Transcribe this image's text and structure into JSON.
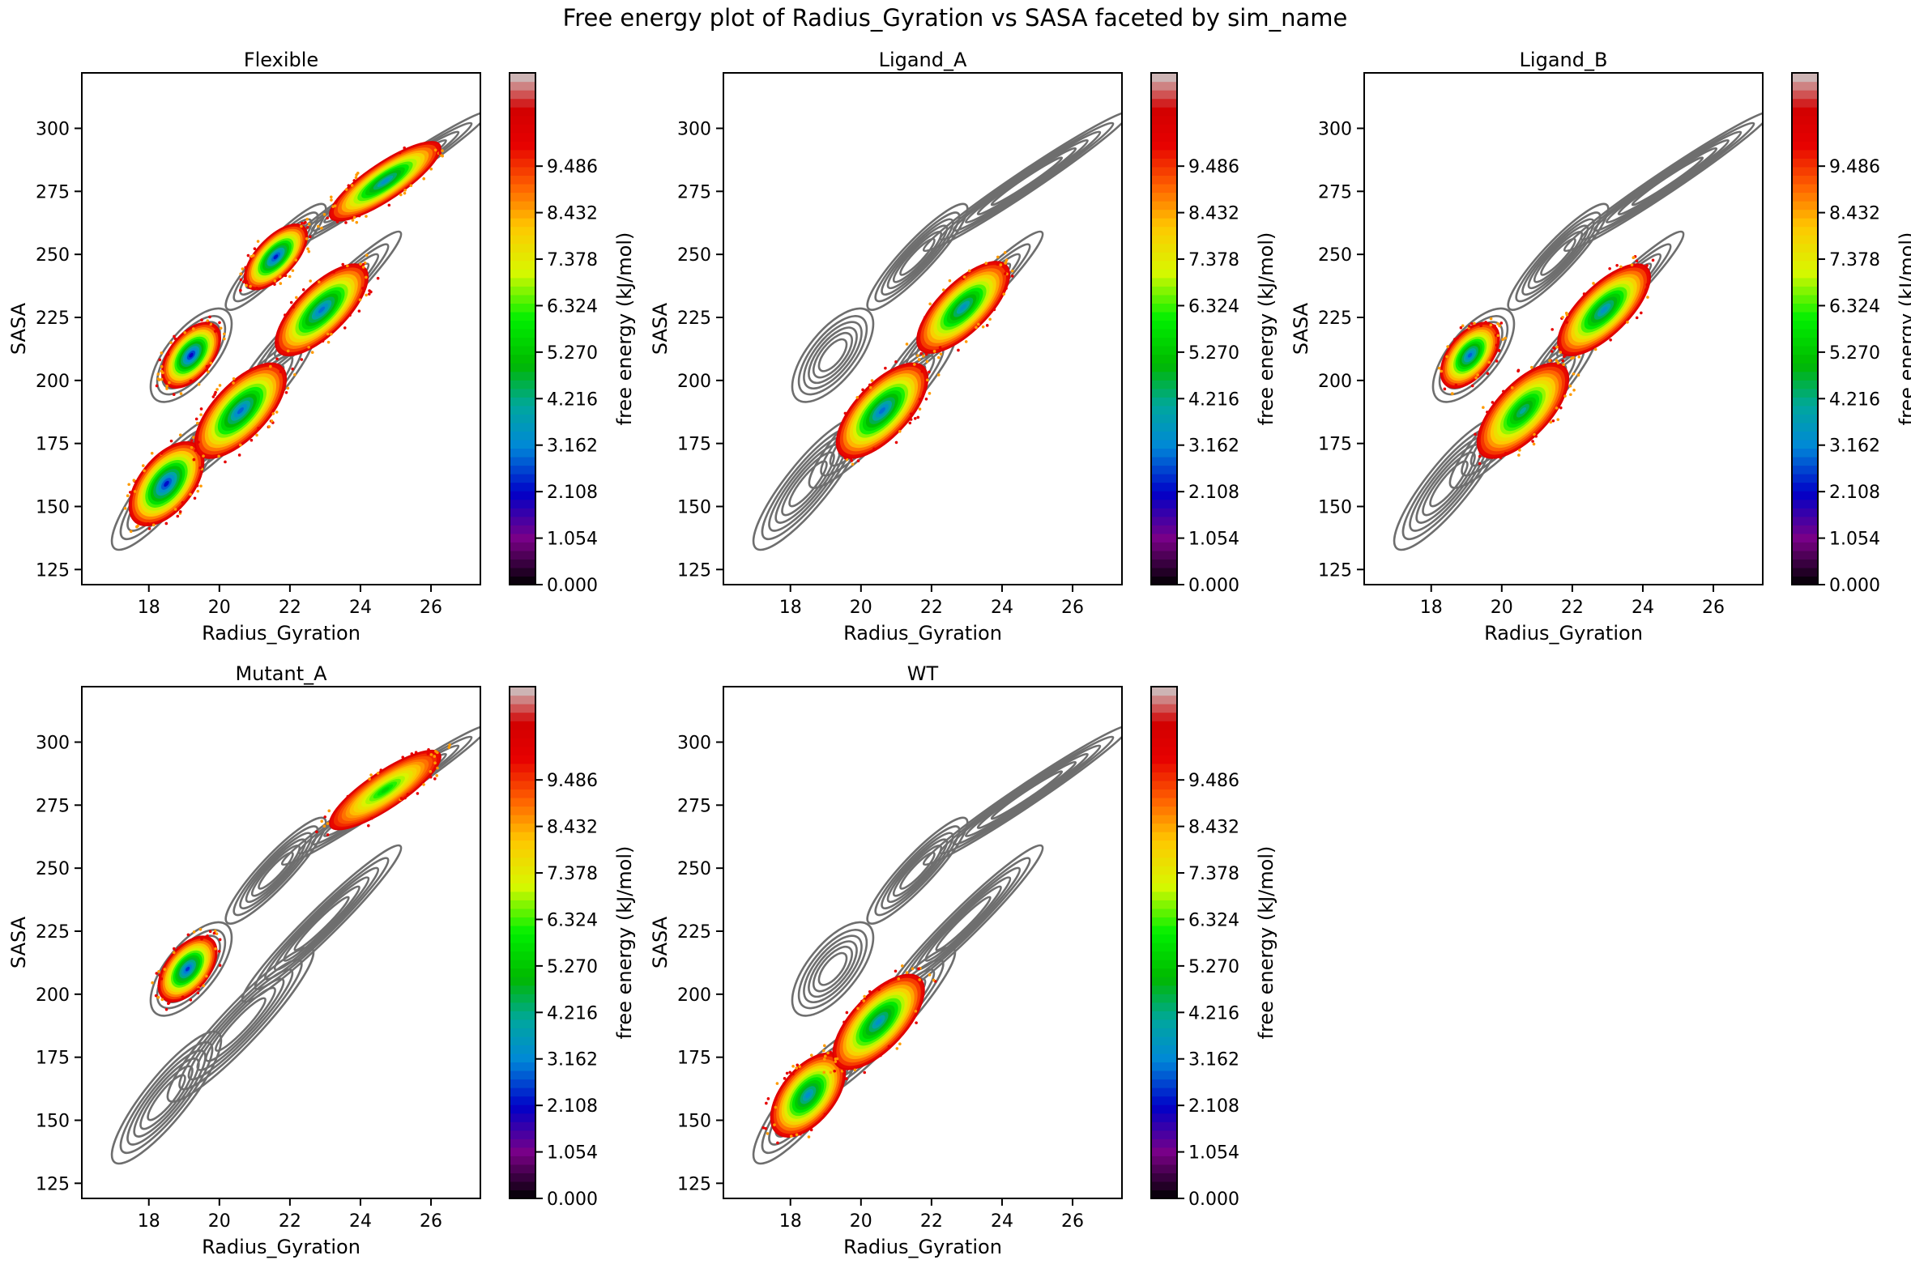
{
  "figure": {
    "suptitle": "Free energy plot of Radius_Gyration vs SASA faceted by sim_name"
  },
  "colors": {
    "reference_contour": "#6e6e6e",
    "colormap": [
      "#000000",
      "#7a0087",
      "#0000c8",
      "#0088d8",
      "#00a79d",
      "#00b800",
      "#00f000",
      "#d7f800",
      "#ffc800",
      "#ff6000",
      "#e60000",
      "#cccccc"
    ]
  },
  "chart_data": [
    {
      "type": "contour",
      "title": "Flexible",
      "xlabel": "Radius_Gyration",
      "ylabel": "SASA",
      "xlim": [
        16.1,
        27.4
      ],
      "ylim": [
        119,
        322
      ],
      "xticks": [
        "18",
        "20",
        "22",
        "24",
        "26"
      ],
      "yticks": [
        "125",
        "150",
        "175",
        "200",
        "225",
        "250",
        "275",
        "300"
      ],
      "colorbar_label": "free energy (kJ/mol)",
      "colorbar_range": [
        0,
        11.6
      ],
      "colorbar_ticks": [
        "0.000",
        "1.054",
        "2.108",
        "3.162",
        "4.216",
        "5.270",
        "6.324",
        "7.378",
        "8.432",
        "9.486"
      ],
      "basins": [
        {
          "x": 18.5,
          "y": 159,
          "min_energy": 1.6
        },
        {
          "x": 19.2,
          "y": 210,
          "min_energy": 1.4
        },
        {
          "x": 20.6,
          "y": 188,
          "min_energy": 2.3
        },
        {
          "x": 21.6,
          "y": 249,
          "min_energy": 1.7
        },
        {
          "x": 22.9,
          "y": 228,
          "min_energy": 2.4
        },
        {
          "x": 24.7,
          "y": 279,
          "min_energy": 2.9
        }
      ]
    },
    {
      "type": "contour",
      "title": "Ligand_A",
      "xlabel": "Radius_Gyration",
      "ylabel": "SASA",
      "xlim": [
        16.1,
        27.4
      ],
      "ylim": [
        119,
        322
      ],
      "xticks": [
        "18",
        "20",
        "22",
        "24",
        "26"
      ],
      "yticks": [
        "125",
        "150",
        "175",
        "200",
        "225",
        "250",
        "275",
        "300"
      ],
      "colorbar_label": "free energy (kJ/mol)",
      "colorbar_range": [
        0,
        11.6
      ],
      "colorbar_ticks": [
        "0.000",
        "1.054",
        "2.108",
        "3.162",
        "4.216",
        "5.270",
        "6.324",
        "7.378",
        "8.432",
        "9.486"
      ],
      "basins": [
        {
          "x": 20.6,
          "y": 188,
          "min_energy": 2.4
        },
        {
          "x": 22.9,
          "y": 229,
          "min_energy": 3.0
        }
      ]
    },
    {
      "type": "contour",
      "title": "Ligand_B",
      "xlabel": "Radius_Gyration",
      "ylabel": "SASA",
      "xlim": [
        16.1,
        27.4
      ],
      "ylim": [
        119,
        322
      ],
      "xticks": [
        "18",
        "20",
        "22",
        "24",
        "26"
      ],
      "yticks": [
        "125",
        "150",
        "175",
        "200",
        "225",
        "250",
        "275",
        "300"
      ],
      "colorbar_label": "free energy (kJ/mol)",
      "colorbar_range": [
        0,
        11.6
      ],
      "colorbar_ticks": [
        "0.000",
        "1.054",
        "2.108",
        "3.162",
        "4.216",
        "5.270",
        "6.324",
        "7.378",
        "8.432",
        "9.486"
      ],
      "basins": [
        {
          "x": 19.1,
          "y": 210,
          "min_energy": 2.3
        },
        {
          "x": 20.6,
          "y": 188,
          "min_energy": 3.6
        },
        {
          "x": 22.9,
          "y": 228,
          "min_energy": 2.9
        }
      ]
    },
    {
      "type": "contour",
      "title": "Mutant_A",
      "xlabel": "Radius_Gyration",
      "ylabel": "SASA",
      "xlim": [
        16.1,
        27.4
      ],
      "ylim": [
        119,
        322
      ],
      "xticks": [
        "18",
        "20",
        "22",
        "24",
        "26"
      ],
      "yticks": [
        "125",
        "150",
        "175",
        "200",
        "225",
        "250",
        "275",
        "300"
      ],
      "colorbar_label": "free energy (kJ/mol)",
      "colorbar_range": [
        0,
        11.6
      ],
      "colorbar_ticks": [
        "0.000",
        "1.054",
        "2.108",
        "3.162",
        "4.216",
        "5.270",
        "6.324",
        "7.378",
        "8.432",
        "9.486"
      ],
      "basins": [
        {
          "x": 19.1,
          "y": 210,
          "min_energy": 1.9
        },
        {
          "x": 24.7,
          "y": 281,
          "min_energy": 5.2
        }
      ]
    },
    {
      "type": "contour",
      "title": "WT",
      "xlabel": "Radius_Gyration",
      "ylabel": "SASA",
      "xlim": [
        16.1,
        27.4
      ],
      "ylim": [
        119,
        322
      ],
      "xticks": [
        "18",
        "20",
        "22",
        "24",
        "26"
      ],
      "yticks": [
        "125",
        "150",
        "175",
        "200",
        "225",
        "250",
        "275",
        "300"
      ],
      "colorbar_label": "free energy (kJ/mol)",
      "colorbar_range": [
        0,
        11.6
      ],
      "colorbar_ticks": [
        "0.000",
        "1.054",
        "2.108",
        "3.162",
        "4.216",
        "5.270",
        "6.324",
        "7.378",
        "8.432",
        "9.486"
      ],
      "basins": [
        {
          "x": 18.5,
          "y": 160,
          "min_energy": 2.8
        },
        {
          "x": 20.5,
          "y": 189,
          "min_energy": 2.9
        }
      ]
    }
  ]
}
